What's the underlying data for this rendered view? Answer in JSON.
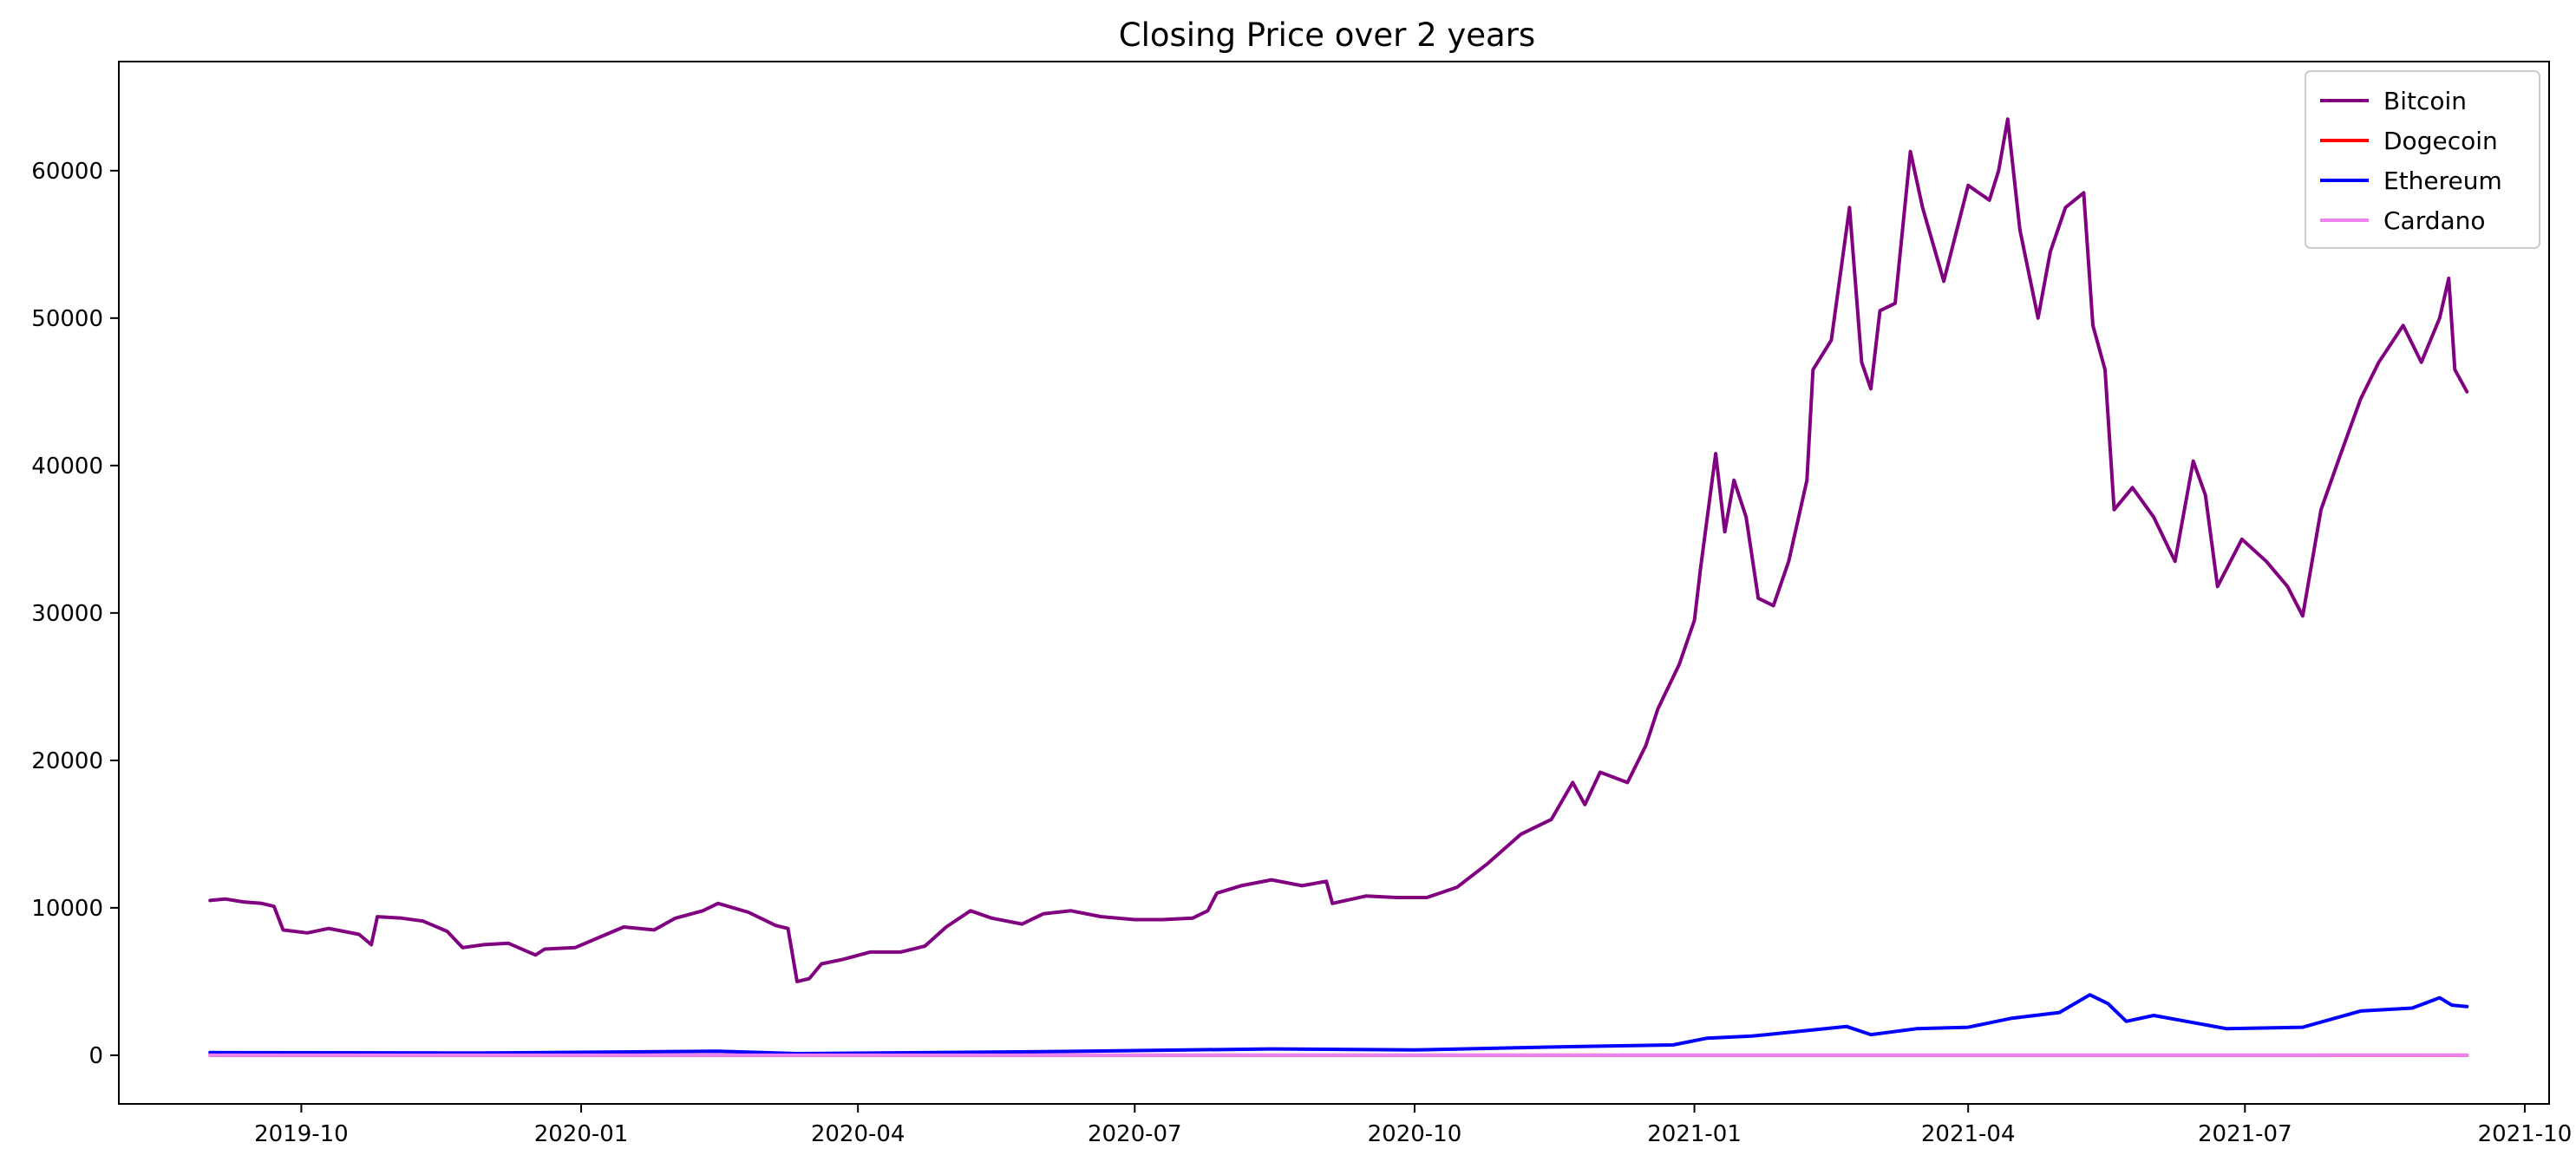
{
  "chart_data": {
    "type": "line",
    "title": "Closing Price over 2 years",
    "xlabel": "",
    "ylabel": "",
    "xlim": [
      "2019-08-02",
      "2021-10-09"
    ],
    "ylim": [
      -3300,
      67400
    ],
    "x_ticks": [
      "2019-10",
      "2020-01",
      "2020-04",
      "2020-07",
      "2020-10",
      "2021-01",
      "2021-04",
      "2021-07",
      "2021-10"
    ],
    "y_ticks": [
      0,
      10000,
      20000,
      30000,
      40000,
      50000,
      60000
    ],
    "grid": false,
    "legend_position": "top-right",
    "series": [
      {
        "name": "Bitcoin",
        "color": "#800080",
        "points": [
          [
            "2019-09-01",
            10500
          ],
          [
            "2019-09-06",
            10600
          ],
          [
            "2019-09-12",
            10400
          ],
          [
            "2019-09-18",
            10300
          ],
          [
            "2019-09-22",
            10100
          ],
          [
            "2019-09-25",
            8500
          ],
          [
            "2019-10-03",
            8300
          ],
          [
            "2019-10-10",
            8600
          ],
          [
            "2019-10-20",
            8200
          ],
          [
            "2019-10-24",
            7500
          ],
          [
            "2019-10-26",
            9400
          ],
          [
            "2019-11-03",
            9300
          ],
          [
            "2019-11-10",
            9100
          ],
          [
            "2019-11-18",
            8400
          ],
          [
            "2019-11-23",
            7300
          ],
          [
            "2019-11-30",
            7500
          ],
          [
            "2019-12-08",
            7600
          ],
          [
            "2019-12-17",
            6800
          ],
          [
            "2019-12-20",
            7200
          ],
          [
            "2019-12-30",
            7300
          ],
          [
            "2020-01-07",
            8000
          ],
          [
            "2020-01-15",
            8700
          ],
          [
            "2020-01-25",
            8500
          ],
          [
            "2020-02-01",
            9300
          ],
          [
            "2020-02-10",
            9800
          ],
          [
            "2020-02-15",
            10300
          ],
          [
            "2020-02-25",
            9700
          ],
          [
            "2020-03-05",
            8800
          ],
          [
            "2020-03-09",
            8600
          ],
          [
            "2020-03-12",
            5000
          ],
          [
            "2020-03-16",
            5200
          ],
          [
            "2020-03-20",
            6200
          ],
          [
            "2020-03-27",
            6500
          ],
          [
            "2020-04-05",
            7000
          ],
          [
            "2020-04-15",
            7000
          ],
          [
            "2020-04-23",
            7400
          ],
          [
            "2020-04-30",
            8700
          ],
          [
            "2020-05-08",
            9800
          ],
          [
            "2020-05-15",
            9300
          ],
          [
            "2020-05-25",
            8900
          ],
          [
            "2020-06-01",
            9600
          ],
          [
            "2020-06-10",
            9800
          ],
          [
            "2020-06-20",
            9400
          ],
          [
            "2020-07-01",
            9200
          ],
          [
            "2020-07-10",
            9200
          ],
          [
            "2020-07-20",
            9300
          ],
          [
            "2020-07-25",
            9800
          ],
          [
            "2020-07-28",
            11000
          ],
          [
            "2020-08-05",
            11500
          ],
          [
            "2020-08-15",
            11900
          ],
          [
            "2020-08-25",
            11500
          ],
          [
            "2020-09-02",
            11800
          ],
          [
            "2020-09-04",
            10300
          ],
          [
            "2020-09-15",
            10800
          ],
          [
            "2020-09-25",
            10700
          ],
          [
            "2020-10-05",
            10700
          ],
          [
            "2020-10-15",
            11400
          ],
          [
            "2020-10-25",
            13000
          ],
          [
            "2020-11-05",
            15000
          ],
          [
            "2020-11-15",
            16000
          ],
          [
            "2020-11-22",
            18500
          ],
          [
            "2020-11-26",
            17000
          ],
          [
            "2020-12-01",
            19200
          ],
          [
            "2020-12-10",
            18500
          ],
          [
            "2020-12-16",
            21000
          ],
          [
            "2020-12-20",
            23500
          ],
          [
            "2020-12-27",
            26500
          ],
          [
            "2021-01-01",
            29500
          ],
          [
            "2021-01-03",
            33000
          ],
          [
            "2021-01-08",
            40800
          ],
          [
            "2021-01-11",
            35500
          ],
          [
            "2021-01-14",
            39000
          ],
          [
            "2021-01-18",
            36500
          ],
          [
            "2021-01-22",
            31000
          ],
          [
            "2021-01-27",
            30500
          ],
          [
            "2021-02-01",
            33500
          ],
          [
            "2021-02-07",
            39000
          ],
          [
            "2021-02-09",
            46500
          ],
          [
            "2021-02-15",
            48500
          ],
          [
            "2021-02-21",
            57500
          ],
          [
            "2021-02-25",
            47000
          ],
          [
            "2021-02-28",
            45200
          ],
          [
            "2021-03-03",
            50500
          ],
          [
            "2021-03-08",
            51000
          ],
          [
            "2021-03-13",
            61300
          ],
          [
            "2021-03-17",
            57500
          ],
          [
            "2021-03-24",
            52500
          ],
          [
            "2021-04-01",
            59000
          ],
          [
            "2021-04-08",
            58000
          ],
          [
            "2021-04-11",
            60000
          ],
          [
            "2021-04-14",
            63500
          ],
          [
            "2021-04-18",
            56000
          ],
          [
            "2021-04-24",
            50000
          ],
          [
            "2021-04-28",
            54500
          ],
          [
            "2021-05-03",
            57500
          ],
          [
            "2021-05-09",
            58500
          ],
          [
            "2021-05-12",
            49500
          ],
          [
            "2021-05-16",
            46500
          ],
          [
            "2021-05-19",
            37000
          ],
          [
            "2021-05-25",
            38500
          ],
          [
            "2021-06-01",
            36500
          ],
          [
            "2021-06-08",
            33500
          ],
          [
            "2021-06-14",
            40300
          ],
          [
            "2021-06-18",
            38000
          ],
          [
            "2021-06-22",
            31800
          ],
          [
            "2021-06-30",
            35000
          ],
          [
            "2021-07-08",
            33500
          ],
          [
            "2021-07-15",
            31800
          ],
          [
            "2021-07-20",
            29800
          ],
          [
            "2021-07-26",
            37000
          ],
          [
            "2021-08-01",
            40500
          ],
          [
            "2021-08-08",
            44500
          ],
          [
            "2021-08-14",
            47000
          ],
          [
            "2021-08-22",
            49500
          ],
          [
            "2021-08-28",
            47000
          ],
          [
            "2021-09-03",
            50000
          ],
          [
            "2021-09-06",
            52700
          ],
          [
            "2021-09-08",
            46500
          ],
          [
            "2021-09-12",
            45000
          ]
        ]
      },
      {
        "name": "Dogecoin",
        "color": "#ff0000",
        "points": [
          [
            "2019-09-01",
            0.002
          ],
          [
            "2020-06-01",
            0.003
          ],
          [
            "2021-01-01",
            0.005
          ],
          [
            "2021-05-08",
            0.7
          ],
          [
            "2021-09-12",
            0.25
          ]
        ]
      },
      {
        "name": "Ethereum",
        "color": "#0000ff",
        "points": [
          [
            "2019-09-01",
            180
          ],
          [
            "2019-12-01",
            150
          ],
          [
            "2020-02-15",
            270
          ],
          [
            "2020-03-12",
            110
          ],
          [
            "2020-06-01",
            240
          ],
          [
            "2020-08-15",
            430
          ],
          [
            "2020-10-01",
            360
          ],
          [
            "2020-11-25",
            600
          ],
          [
            "2020-12-25",
            700
          ],
          [
            "2021-01-05",
            1150
          ],
          [
            "2021-01-20",
            1300
          ],
          [
            "2021-02-20",
            1950
          ],
          [
            "2021-02-28",
            1400
          ],
          [
            "2021-03-15",
            1800
          ],
          [
            "2021-04-01",
            1900
          ],
          [
            "2021-04-15",
            2500
          ],
          [
            "2021-05-01",
            2900
          ],
          [
            "2021-05-11",
            4100
          ],
          [
            "2021-05-17",
            3500
          ],
          [
            "2021-05-23",
            2300
          ],
          [
            "2021-06-01",
            2700
          ],
          [
            "2021-06-25",
            1800
          ],
          [
            "2021-07-20",
            1900
          ],
          [
            "2021-08-08",
            3000
          ],
          [
            "2021-08-25",
            3200
          ],
          [
            "2021-09-03",
            3900
          ],
          [
            "2021-09-07",
            3400
          ],
          [
            "2021-09-12",
            3300
          ]
        ]
      },
      {
        "name": "Cardano",
        "color": "#ee82ee",
        "points": [
          [
            "2019-09-01",
            0.05
          ],
          [
            "2020-10-01",
            0.1
          ],
          [
            "2021-03-01",
            1.2
          ],
          [
            "2021-09-02",
            2.9
          ],
          [
            "2021-09-12",
            2.5
          ]
        ]
      }
    ]
  }
}
